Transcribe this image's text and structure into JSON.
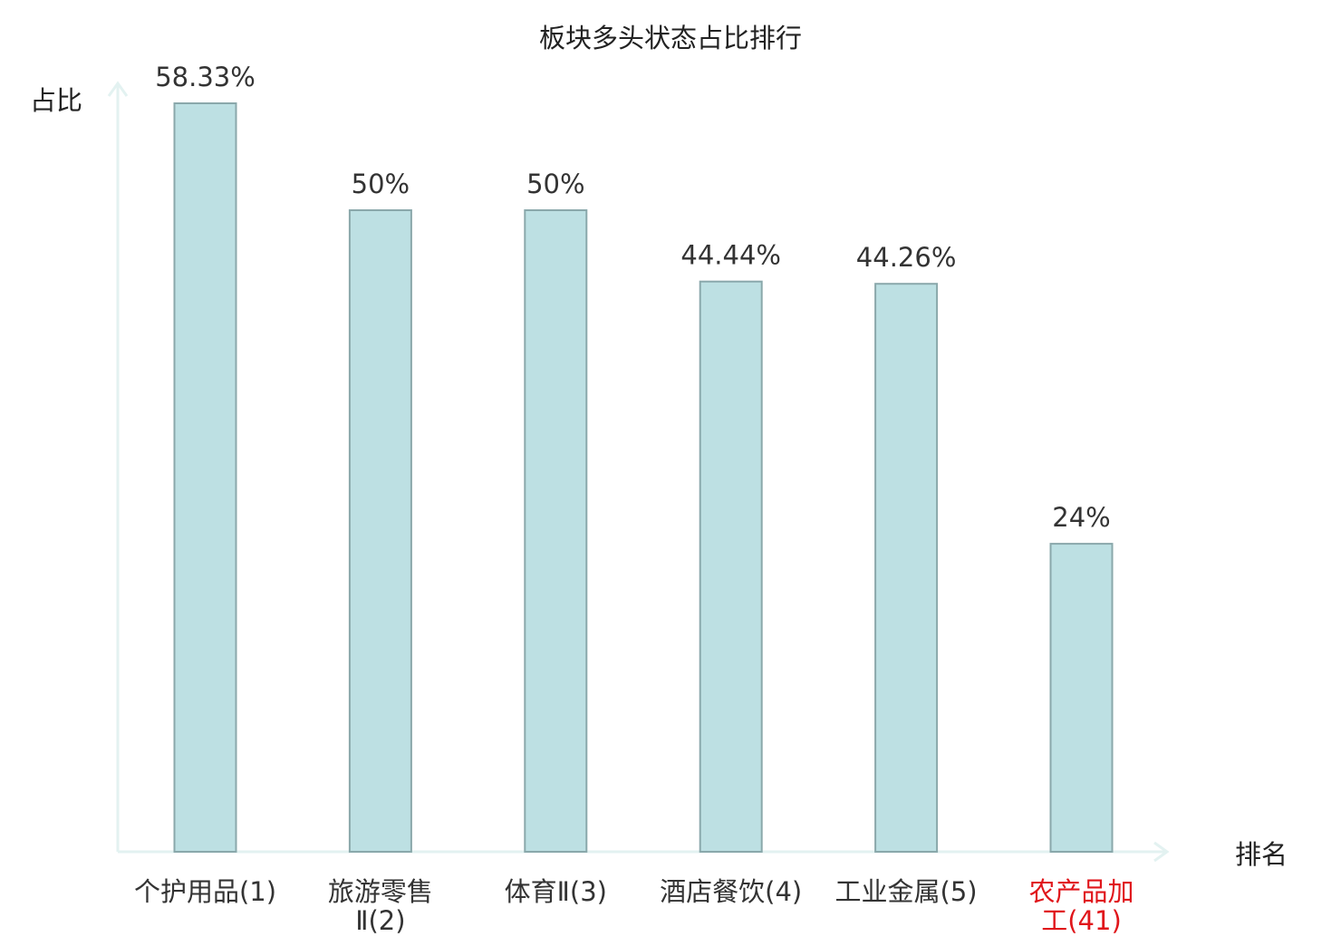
{
  "chart_data": {
    "type": "bar",
    "title": "板块多头状态占比排行",
    "ylabel": "占比",
    "xlabel": "排名",
    "categories": [
      {
        "lines": [
          "个护用品(1)"
        ],
        "highlight": false
      },
      {
        "lines": [
          "旅游零售",
          "Ⅱ(2)"
        ],
        "highlight": false
      },
      {
        "lines": [
          "体育Ⅱ(3)"
        ],
        "highlight": false
      },
      {
        "lines": [
          "酒店餐饮(4)"
        ],
        "highlight": false
      },
      {
        "lines": [
          "工业金属(5)"
        ],
        "highlight": false
      },
      {
        "lines": [
          "农产品加",
          "工(41)"
        ],
        "highlight": true
      }
    ],
    "values": [
      58.33,
      50,
      50,
      44.44,
      44.26,
      24
    ],
    "value_labels": [
      "58.33%",
      "50%",
      "50%",
      "44.44%",
      "44.26%",
      "24%"
    ],
    "ylim": [
      0,
      60
    ],
    "grid": false,
    "colors": {
      "bar_fill": "#bde0e3",
      "bar_stroke": "#8aa8ab",
      "axis": "#e3f2f1",
      "text": "#333333",
      "highlight_text": "#e0161b"
    }
  }
}
